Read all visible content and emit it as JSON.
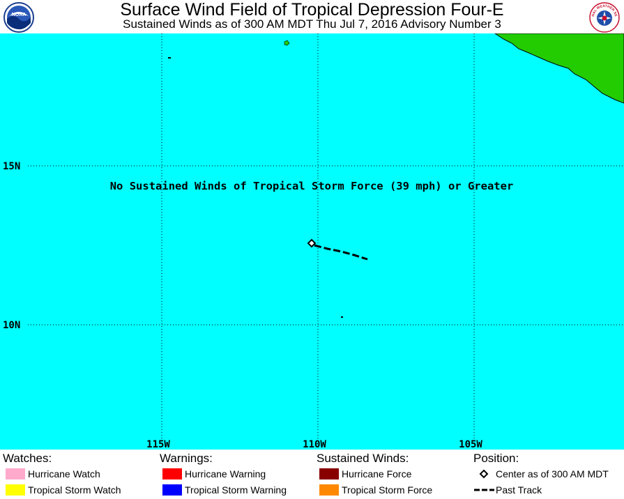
{
  "header": {
    "title": "Surface Wind Field of Tropical Depression Four-E",
    "subtitle": "Sustained Winds as of 300 AM MDT Thu Jul 7, 2016   Advisory Number 3",
    "noaa_logo_text": "NOAA",
    "nws_logo_text": "NATIONAL WEATHER SERVICE"
  },
  "map": {
    "ocean_color": "#00FFFF",
    "land_color": "#22CC00",
    "lat_labels": [
      "15N",
      "10N"
    ],
    "lon_labels": [
      "115W",
      "110W",
      "105W"
    ],
    "notice": "No Sustained Winds of Tropical Storm Force (39 mph) or Greater",
    "storm_center": {
      "lat": 12.6,
      "lon": -109.9
    }
  },
  "legend": {
    "watches": {
      "heading": "Watches:",
      "items": [
        {
          "label": "Hurricane Watch",
          "color": "#FFAACC"
        },
        {
          "label": "Tropical Storm Watch",
          "color": "#FFFF00"
        }
      ]
    },
    "warnings": {
      "heading": "Warnings:",
      "items": [
        {
          "label": "Hurricane Warning",
          "color": "#FF0000"
        },
        {
          "label": "Tropical Storm Warning",
          "color": "#0000FF"
        }
      ]
    },
    "winds": {
      "heading": "Sustained Winds:",
      "items": [
        {
          "label": "Hurricane Force",
          "color": "#880000"
        },
        {
          "label": "Tropical Storm Force",
          "color": "#FF8800"
        }
      ]
    },
    "position": {
      "heading": "Position:",
      "items": [
        {
          "label": "Center as of 300 AM MDT",
          "symbol": "diamond-icon"
        },
        {
          "label": "Past Track",
          "symbol": "dashed-line-icon"
        }
      ]
    }
  }
}
